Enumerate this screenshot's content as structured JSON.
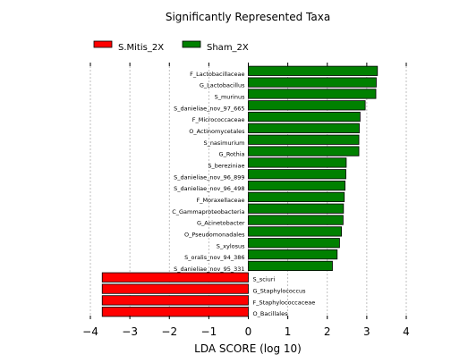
{
  "chart_data": {
    "type": "bar",
    "orientation": "horizontal",
    "title": "Significantly Represented Taxa",
    "xlabel": "LDA SCORE (log 10)",
    "ylabel": "",
    "xlim": [
      -4,
      4
    ],
    "xticks": [
      "−4",
      "−3",
      "−2",
      "−1",
      "0",
      "1",
      "2",
      "3",
      "4"
    ],
    "grid": true,
    "legend_position": "top-left",
    "series": [
      {
        "name": "S.Mitis_2X",
        "color": "#ff0000",
        "categories": [
          "S_sciuri",
          "G_Staphylococcus",
          "F_Staphylococcaceae",
          "O_Bacillales"
        ],
        "values": [
          -3.7,
          -3.7,
          -3.7,
          -3.7
        ]
      },
      {
        "name": "Sham_2X",
        "color": "#008000",
        "categories": [
          "F_Lactobacillaceae",
          "G_Lactobacillus",
          "S_murinus",
          "S_danieliae_nov_97_665",
          "F_Micrococcaceae",
          "O_Actinomycetales",
          "S_nasimurium",
          "G_Rothia",
          "S_bereziniae",
          "S_danieliae_nov_96_899",
          "S_danieliae_nov_96_498",
          "F_Moraxellaceae",
          "C_Gammaproteobacteria",
          "G_Acinetobacter",
          "O_Pseudomonadales",
          "S_xylosus",
          "S_oralis_nov_94_386",
          "S_danieliae_nov_95_331"
        ],
        "values": [
          3.27,
          3.24,
          3.23,
          2.96,
          2.83,
          2.81,
          2.8,
          2.8,
          2.48,
          2.47,
          2.45,
          2.43,
          2.41,
          2.4,
          2.36,
          2.31,
          2.25,
          2.13
        ]
      }
    ]
  }
}
